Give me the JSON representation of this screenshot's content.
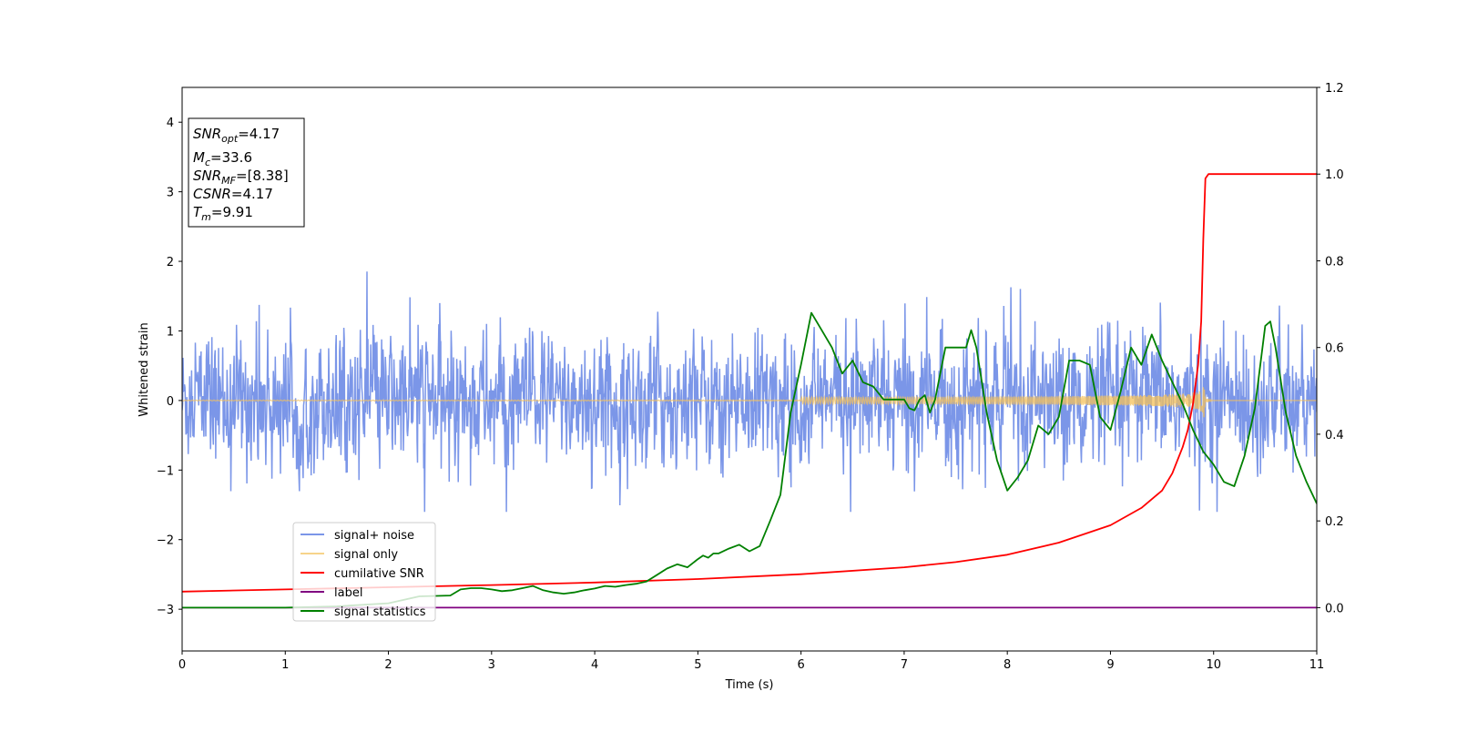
{
  "chart_data": {
    "type": "line",
    "xlabel": "Time (s)",
    "ylabel": "Whitened strain",
    "xlim": [
      0,
      11
    ],
    "ylim_left": [
      -3.6,
      4.5
    ],
    "ylim_right": [
      -0.1,
      1.2
    ],
    "x_ticks": [
      "0",
      "1",
      "2",
      "3",
      "4",
      "5",
      "6",
      "7",
      "8",
      "9",
      "10",
      "11"
    ],
    "y_ticks_left": [
      "−3",
      "−2",
      "−1",
      "0",
      "1",
      "2",
      "3",
      "4"
    ],
    "y_ticks_right": [
      "0.0",
      "0.2",
      "0.4",
      "0.6",
      "0.8",
      "1.0",
      "1.2"
    ],
    "grid": false,
    "legend_position": "lower-left",
    "info_box": {
      "snr_opt_label": "SNR",
      "snr_opt_sub": "opt",
      "snr_opt_value": "=4.17",
      "mc_label": "M",
      "mc_sub": "c",
      "mc_value": "=33.6",
      "snr_mf_label": "SNR",
      "snr_mf_sub": "MF",
      "snr_mf_value": "=[8.38]",
      "csnr_label": "CSNR",
      "csnr_value": "=4.17",
      "tm_label": "T",
      "tm_sub": "m",
      "tm_value": "=9.91"
    },
    "series": [
      {
        "name": "signal+ noise",
        "axis": "left",
        "color": "#7b96e8",
        "noise_std": 0.45,
        "spike_range": [
          -1.6,
          2.1
        ]
      },
      {
        "name": "signal only",
        "axis": "left",
        "color": "#f5c25a",
        "merger_time": 9.91,
        "peak_amplitude": 0.45
      },
      {
        "name": "cumilative SNR",
        "axis": "right",
        "color": "#ff0000",
        "x": [
          0,
          1,
          2,
          3,
          4,
          5,
          6,
          7,
          7.5,
          8,
          8.5,
          9,
          9.3,
          9.5,
          9.6,
          9.7,
          9.75,
          9.8,
          9.85,
          9.88,
          9.9,
          9.92,
          9.95,
          10,
          11
        ],
        "y": [
          0.037,
          0.042,
          0.047,
          0.052,
          0.058,
          0.066,
          0.077,
          0.093,
          0.105,
          0.122,
          0.15,
          0.19,
          0.23,
          0.27,
          0.31,
          0.37,
          0.41,
          0.47,
          0.56,
          0.66,
          0.85,
          0.99,
          1.0,
          1.0,
          1.0
        ]
      },
      {
        "name": "label",
        "axis": "right",
        "color": "#800080",
        "x": [
          0,
          11
        ],
        "y": [
          0,
          0
        ]
      },
      {
        "name": "signal statistics",
        "axis": "right",
        "color": "#008000",
        "x": [
          0,
          0.5,
          1,
          1.5,
          2,
          2.3,
          2.6,
          2.7,
          2.8,
          2.9,
          3.0,
          3.1,
          3.2,
          3.3,
          3.4,
          3.5,
          3.6,
          3.7,
          3.8,
          3.9,
          4.0,
          4.1,
          4.2,
          4.3,
          4.4,
          4.5,
          4.6,
          4.7,
          4.8,
          4.9,
          5.0,
          5.05,
          5.1,
          5.15,
          5.2,
          5.3,
          5.4,
          5.5,
          5.6,
          5.7,
          5.8,
          5.9,
          6.0,
          6.05,
          6.1,
          6.2,
          6.3,
          6.4,
          6.5,
          6.6,
          6.7,
          6.8,
          6.9,
          7.0,
          7.05,
          7.1,
          7.15,
          7.2,
          7.25,
          7.3,
          7.4,
          7.5,
          7.6,
          7.65,
          7.7,
          7.8,
          7.9,
          8.0,
          8.1,
          8.2,
          8.3,
          8.4,
          8.5,
          8.6,
          8.7,
          8.8,
          8.9,
          9.0,
          9.1,
          9.2,
          9.3,
          9.4,
          9.5,
          9.6,
          9.7,
          9.8,
          9.9,
          10.0,
          10.1,
          10.2,
          10.3,
          10.4,
          10.5,
          10.55,
          10.6,
          10.7,
          10.8,
          10.9,
          11.0
        ],
        "y": [
          0.0,
          0.0,
          0.0,
          0.003,
          0.01,
          0.026,
          0.028,
          0.042,
          0.045,
          0.045,
          0.042,
          0.038,
          0.04,
          0.045,
          0.05,
          0.04,
          0.035,
          0.032,
          0.035,
          0.04,
          0.044,
          0.05,
          0.048,
          0.052,
          0.055,
          0.06,
          0.075,
          0.09,
          0.1,
          0.093,
          0.112,
          0.12,
          0.115,
          0.125,
          0.125,
          0.136,
          0.145,
          0.13,
          0.142,
          0.2,
          0.26,
          0.45,
          0.56,
          0.62,
          0.68,
          0.64,
          0.6,
          0.54,
          0.57,
          0.52,
          0.51,
          0.48,
          0.48,
          0.48,
          0.46,
          0.455,
          0.48,
          0.49,
          0.45,
          0.48,
          0.6,
          0.6,
          0.6,
          0.64,
          0.6,
          0.45,
          0.34,
          0.27,
          0.3,
          0.34,
          0.42,
          0.4,
          0.44,
          0.57,
          0.57,
          0.56,
          0.44,
          0.41,
          0.5,
          0.6,
          0.56,
          0.63,
          0.57,
          0.52,
          0.47,
          0.41,
          0.36,
          0.33,
          0.29,
          0.28,
          0.35,
          0.46,
          0.65,
          0.66,
          0.6,
          0.45,
          0.35,
          0.29,
          0.24
        ]
      }
    ]
  }
}
